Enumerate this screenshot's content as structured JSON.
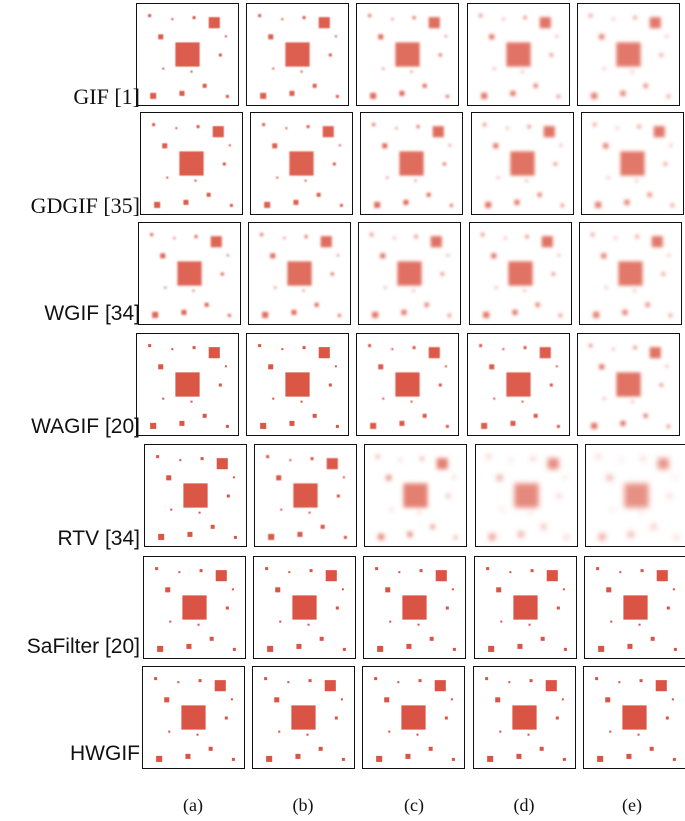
{
  "rows": [
    {
      "label": "GIF [1]",
      "blur": [
        0.6,
        0.7,
        1.4,
        1.7,
        1.9
      ]
    },
    {
      "label": "GDGIF [35]",
      "blur": [
        0.6,
        0.8,
        1.3,
        1.6,
        1.8
      ]
    },
    {
      "label": "WGIF [34]",
      "blur": [
        1.0,
        1.4,
        1.5,
        1.6,
        1.8
      ]
    },
    {
      "label": "WAGIF [20]",
      "blur": [
        0.3,
        0.3,
        0.4,
        0.6,
        1.6
      ]
    },
    {
      "label": "RTV [34]",
      "blur": [
        0.3,
        0.4,
        2.2,
        2.6,
        3.0
      ]
    },
    {
      "label": "SaFilter [20]",
      "blur": [
        0.2,
        0.2,
        0.2,
        0.2,
        0.2
      ]
    },
    {
      "label": "HWGIF",
      "blur": [
        0.2,
        0.2,
        0.2,
        0.2,
        0.2
      ]
    }
  ],
  "columns": [
    "(a)",
    "(b)",
    "(c)",
    "(d)",
    "(e)"
  ],
  "colors": {
    "square": "#d9513f",
    "border": "#111111"
  }
}
